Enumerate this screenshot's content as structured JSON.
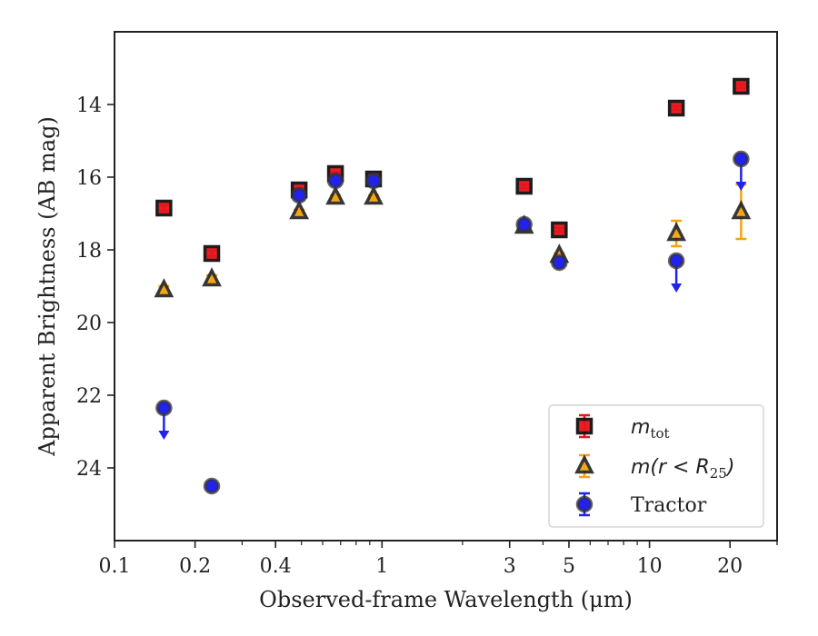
{
  "chart_data": {
    "type": "scatter",
    "xlabel": "Observed-frame Wavelength (μm)",
    "ylabel": "Apparent Brightness (AB mag)",
    "xscale": "log",
    "xlim": [
      0.1,
      30
    ],
    "ylim": [
      26,
      12
    ],
    "y_inverted": true,
    "x_ticks": [
      0.1,
      0.2,
      0.4,
      1,
      3,
      5,
      10,
      20
    ],
    "x_tick_labels": [
      "0.1",
      "0.2",
      "0.4",
      "1",
      "3",
      "5",
      "10",
      "20"
    ],
    "y_ticks": [
      14,
      16,
      18,
      20,
      22,
      24
    ],
    "y_tick_labels": [
      "14",
      "16",
      "18",
      "20",
      "22",
      "24"
    ],
    "grid": false,
    "legend_position": "lower-right",
    "series": [
      {
        "name": "m_tot",
        "legend_main": "m",
        "legend_sub": "tot",
        "marker": "square",
        "color": "#e8141b",
        "points": [
          {
            "x": 0.153,
            "y": 16.85,
            "err": 0.08
          },
          {
            "x": 0.231,
            "y": 18.1,
            "err": 0.08
          },
          {
            "x": 0.49,
            "y": 16.35,
            "err": 0.05
          },
          {
            "x": 0.67,
            "y": 15.9,
            "err": 0.05
          },
          {
            "x": 0.93,
            "y": 16.05,
            "err": 0.05
          },
          {
            "x": 3.4,
            "y": 16.25,
            "err": 0.05
          },
          {
            "x": 4.6,
            "y": 17.45,
            "err": 0.05
          },
          {
            "x": 12.6,
            "y": 14.1,
            "err": 0.05
          },
          {
            "x": 22.0,
            "y": 13.5,
            "err": 0.05
          }
        ]
      },
      {
        "name": "m(r < R25)",
        "legend_main": "m(r < R",
        "legend_sub": "25",
        "legend_tail": ")",
        "marker": "triangle",
        "color": "#f5a40c",
        "points": [
          {
            "x": 0.153,
            "y": 19.1,
            "err": 0.1
          },
          {
            "x": 0.231,
            "y": 18.8,
            "err": 0.1
          },
          {
            "x": 0.49,
            "y": 16.95,
            "err": 0.05
          },
          {
            "x": 0.67,
            "y": 16.55,
            "err": 0.05
          },
          {
            "x": 0.93,
            "y": 16.55,
            "err": 0.05
          },
          {
            "x": 3.4,
            "y": 17.35,
            "err": 0.05
          },
          {
            "x": 4.6,
            "y": 18.15,
            "err": 0.05
          },
          {
            "x": 12.6,
            "y": 17.55,
            "err": 0.35
          },
          {
            "x": 22.0,
            "y": 16.95,
            "err": 0.75
          }
        ]
      },
      {
        "name": "Tractor",
        "legend_main": "Tractor",
        "marker": "circle",
        "color": "#2222ee",
        "points": [
          {
            "x": 0.153,
            "y": 22.35,
            "upper_limit": true
          },
          {
            "x": 0.231,
            "y": 24.5
          },
          {
            "x": 0.49,
            "y": 16.5
          },
          {
            "x": 0.67,
            "y": 16.1
          },
          {
            "x": 0.93,
            "y": 16.1
          },
          {
            "x": 3.4,
            "y": 17.3
          },
          {
            "x": 4.6,
            "y": 18.35
          },
          {
            "x": 12.6,
            "y": 18.3,
            "upper_limit": true
          },
          {
            "x": 22.0,
            "y": 15.5,
            "upper_limit": true
          }
        ]
      }
    ]
  }
}
